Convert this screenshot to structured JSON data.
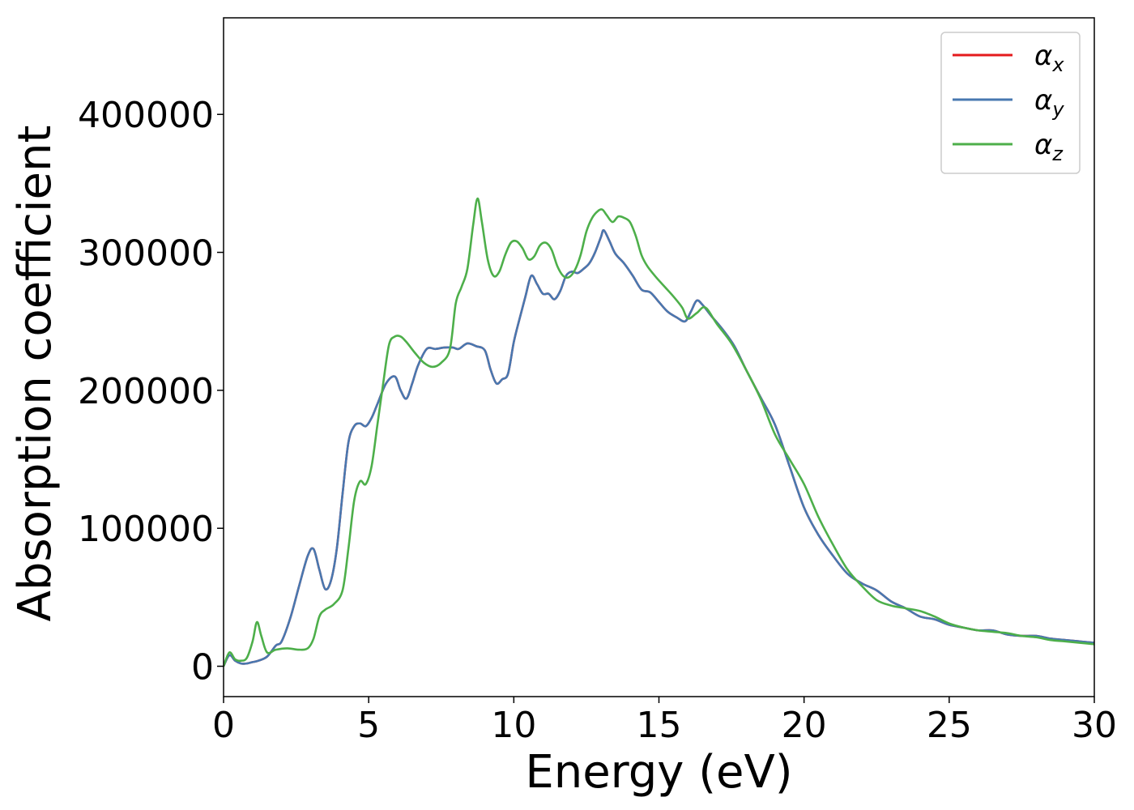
{
  "chart_data": {
    "type": "line",
    "title": "",
    "xlabel": "Energy (eV)",
    "ylabel": "Absorption coefficient",
    "xlim": [
      0,
      30
    ],
    "ylim": [
      -22000,
      470000
    ],
    "xticks": [
      0,
      5,
      10,
      15,
      20,
      25,
      30
    ],
    "xtick_labels": [
      "0",
      "5",
      "10",
      "15",
      "20",
      "25",
      "30"
    ],
    "yticks": [
      0,
      100000,
      200000,
      300000,
      400000
    ],
    "ytick_labels": [
      "0",
      "100000",
      "200000",
      "300000",
      "400000"
    ],
    "grid": false,
    "legend_position": "top-right",
    "series": [
      {
        "name": "α_x",
        "label_base": "α",
        "label_sub": "x",
        "color": "#e41a1c",
        "x": [
          0,
          0.2,
          0.4,
          0.6,
          0.8,
          1.0,
          1.2,
          1.5,
          1.8,
          2.0,
          2.3,
          2.6,
          2.9,
          3.1,
          3.3,
          3.5,
          3.7,
          3.9,
          4.1,
          4.3,
          4.5,
          4.7,
          4.9,
          5.1,
          5.3,
          5.6,
          5.9,
          6.1,
          6.3,
          6.5,
          6.7,
          7.0,
          7.3,
          7.6,
          7.9,
          8.1,
          8.4,
          8.7,
          9.0,
          9.2,
          9.4,
          9.6,
          9.8,
          10.0,
          10.2,
          10.4,
          10.6,
          10.8,
          11.0,
          11.2,
          11.4,
          11.6,
          11.8,
          12.0,
          12.2,
          12.4,
          12.6,
          12.8,
          13.0,
          13.1,
          13.3,
          13.5,
          13.8,
          14.1,
          14.4,
          14.7,
          15.0,
          15.3,
          15.6,
          15.9,
          16.1,
          16.3,
          16.5,
          16.8,
          17.2,
          17.6,
          18.0,
          18.5,
          19.0,
          19.5,
          20.0,
          20.5,
          21.0,
          21.5,
          22.0,
          22.5,
          23.0,
          23.5,
          24.0,
          24.5,
          25.0,
          25.5,
          26.0,
          26.5,
          27.0,
          27.5,
          28.0,
          28.5,
          29.0,
          29.5,
          30.0
        ],
        "y": [
          0,
          8000,
          4000,
          2000,
          2000,
          3000,
          4000,
          7000,
          15000,
          18000,
          35000,
          58000,
          80000,
          85000,
          70000,
          56000,
          62000,
          85000,
          125000,
          162000,
          174000,
          176000,
          174000,
          180000,
          190000,
          205000,
          210000,
          200000,
          194000,
          205000,
          218000,
          230000,
          230000,
          231000,
          231000,
          230000,
          234000,
          232000,
          229000,
          215000,
          205000,
          208000,
          212000,
          235000,
          252000,
          268000,
          283000,
          277000,
          270000,
          270000,
          266000,
          272000,
          283000,
          286000,
          285000,
          288000,
          292000,
          300000,
          311000,
          316000,
          308000,
          299000,
          292000,
          283000,
          273000,
          271000,
          264000,
          257000,
          253000,
          250000,
          257000,
          265000,
          262000,
          254000,
          244000,
          232000,
          215000,
          195000,
          175000,
          145000,
          115000,
          95000,
          80000,
          67000,
          60000,
          55000,
          47000,
          42000,
          36000,
          34000,
          30000,
          28000,
          26000,
          26000,
          23000,
          22000,
          22000,
          20000,
          19000,
          18000,
          17000
        ]
      },
      {
        "name": "α_y",
        "label_base": "α",
        "label_sub": "y",
        "color": "#4878b0",
        "x": [
          0,
          0.2,
          0.4,
          0.6,
          0.8,
          1.0,
          1.2,
          1.5,
          1.8,
          2.0,
          2.3,
          2.6,
          2.9,
          3.1,
          3.3,
          3.5,
          3.7,
          3.9,
          4.1,
          4.3,
          4.5,
          4.7,
          4.9,
          5.1,
          5.3,
          5.6,
          5.9,
          6.1,
          6.3,
          6.5,
          6.7,
          7.0,
          7.3,
          7.6,
          7.9,
          8.1,
          8.4,
          8.7,
          9.0,
          9.2,
          9.4,
          9.6,
          9.8,
          10.0,
          10.2,
          10.4,
          10.6,
          10.8,
          11.0,
          11.2,
          11.4,
          11.6,
          11.8,
          12.0,
          12.2,
          12.4,
          12.6,
          12.8,
          13.0,
          13.1,
          13.3,
          13.5,
          13.8,
          14.1,
          14.4,
          14.7,
          15.0,
          15.3,
          15.6,
          15.9,
          16.1,
          16.3,
          16.5,
          16.8,
          17.2,
          17.6,
          18.0,
          18.5,
          19.0,
          19.5,
          20.0,
          20.5,
          21.0,
          21.5,
          22.0,
          22.5,
          23.0,
          23.5,
          24.0,
          24.5,
          25.0,
          25.5,
          26.0,
          26.5,
          27.0,
          27.5,
          28.0,
          28.5,
          29.0,
          29.5,
          30.0
        ],
        "y": [
          0,
          8000,
          4000,
          2000,
          2000,
          3000,
          4000,
          7000,
          15000,
          18000,
          35000,
          58000,
          80000,
          85000,
          70000,
          56000,
          62000,
          85000,
          125000,
          162000,
          174000,
          176000,
          174000,
          180000,
          190000,
          205000,
          210000,
          200000,
          194000,
          205000,
          218000,
          230000,
          230000,
          231000,
          231000,
          230000,
          234000,
          232000,
          229000,
          215000,
          205000,
          208000,
          212000,
          235000,
          252000,
          268000,
          283000,
          277000,
          270000,
          270000,
          266000,
          272000,
          283000,
          286000,
          285000,
          288000,
          292000,
          300000,
          311000,
          316000,
          308000,
          299000,
          292000,
          283000,
          273000,
          271000,
          264000,
          257000,
          253000,
          250000,
          257000,
          265000,
          262000,
          254000,
          244000,
          232000,
          215000,
          195000,
          175000,
          145000,
          115000,
          95000,
          80000,
          67000,
          60000,
          55000,
          47000,
          42000,
          36000,
          34000,
          30000,
          28000,
          26000,
          26000,
          23000,
          22000,
          22000,
          20000,
          19000,
          18000,
          17000
        ]
      },
      {
        "name": "α_z",
        "label_base": "α",
        "label_sub": "z",
        "color": "#4daf4a",
        "x": [
          0,
          0.2,
          0.4,
          0.6,
          0.8,
          1.0,
          1.15,
          1.3,
          1.5,
          1.8,
          2.2,
          2.6,
          2.9,
          3.1,
          3.3,
          3.5,
          3.8,
          4.1,
          4.3,
          4.5,
          4.7,
          4.9,
          5.1,
          5.3,
          5.5,
          5.7,
          5.9,
          6.1,
          6.3,
          6.6,
          6.9,
          7.2,
          7.5,
          7.8,
          8.0,
          8.2,
          8.4,
          8.6,
          8.75,
          8.9,
          9.1,
          9.3,
          9.5,
          9.7,
          9.9,
          10.1,
          10.3,
          10.5,
          10.7,
          10.9,
          11.1,
          11.3,
          11.5,
          11.7,
          11.9,
          12.1,
          12.3,
          12.5,
          12.7,
          12.9,
          13.05,
          13.2,
          13.4,
          13.6,
          13.8,
          14.0,
          14.2,
          14.4,
          14.6,
          14.9,
          15.2,
          15.5,
          15.8,
          16.0,
          16.3,
          16.6,
          17.0,
          17.5,
          18.0,
          18.5,
          19.0,
          19.5,
          20.0,
          20.5,
          21.0,
          21.5,
          22.0,
          22.5,
          23.0,
          23.5,
          24.0,
          24.5,
          25.0,
          25.5,
          26.0,
          26.5,
          27.0,
          27.5,
          28.0,
          28.5,
          29.0,
          29.5,
          30.0
        ],
        "y": [
          0,
          10000,
          5000,
          4000,
          6000,
          18000,
          32000,
          22000,
          10000,
          12000,
          13000,
          12000,
          13000,
          20000,
          36000,
          41000,
          45000,
          55000,
          85000,
          120000,
          134000,
          132000,
          145000,
          175000,
          205000,
          233000,
          239000,
          239000,
          235000,
          227000,
          220000,
          217000,
          220000,
          230000,
          263000,
          275000,
          288000,
          320000,
          339000,
          322000,
          295000,
          283000,
          286000,
          298000,
          307000,
          308000,
          303000,
          295000,
          297000,
          305000,
          307000,
          302000,
          290000,
          283000,
          282000,
          287000,
          298000,
          315000,
          325000,
          330000,
          331000,
          327000,
          322000,
          326000,
          325000,
          322000,
          312000,
          298000,
          290000,
          282000,
          275000,
          268000,
          260000,
          252000,
          256000,
          260000,
          248000,
          234000,
          215000,
          194000,
          168000,
          150000,
          132000,
          108000,
          88000,
          70000,
          58000,
          48000,
          44000,
          42000,
          40000,
          36000,
          31000,
          28000,
          26000,
          25000,
          24000,
          22000,
          21000,
          19000,
          18000,
          17000,
          16000
        ]
      }
    ]
  }
}
